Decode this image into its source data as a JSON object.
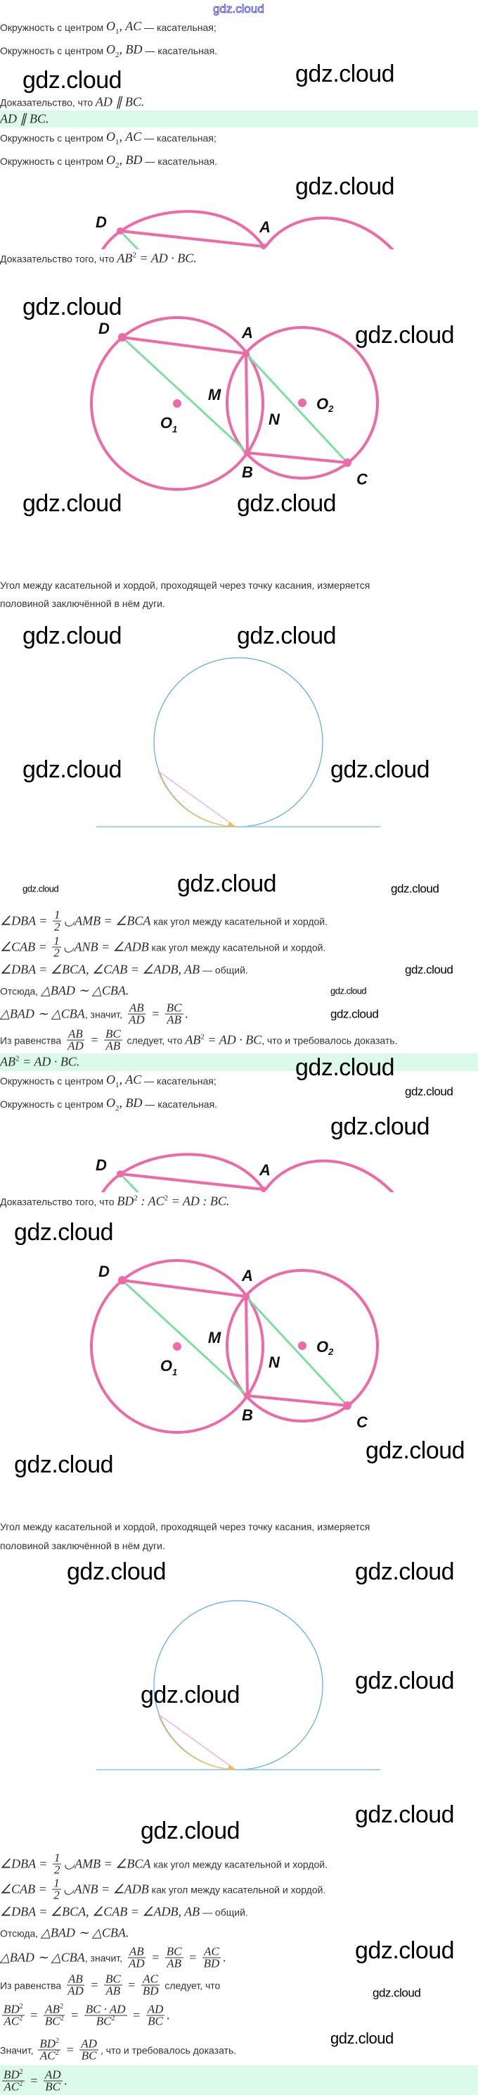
{
  "logo": "gdz.cloud",
  "watermark": "gdz.cloud",
  "colors": {
    "circle": "#ee6aa7",
    "green_line": "#7fdfa0",
    "answer_band": "#dcfaea",
    "tangent_circle": "#5aa9e6",
    "arc": "#f5c96a",
    "chord": "#f4a7c0"
  },
  "given": {
    "prefix": "Окружность с центром ",
    "o": "O",
    "sub1": "1",
    "sub2": "2",
    "ac": ", AC",
    "bd": ", BD",
    "suffix1": " — касательная;",
    "suffix2": " — касательная."
  },
  "task1": {
    "label": "Доказательство, что ",
    "math": "AD ∥ BC."
  },
  "answer1": "AD ∥ BC.",
  "task2": {
    "label": "Доказательство того, что ",
    "ab": "AB",
    "sq": "2",
    "rest": " = AD · BC."
  },
  "task3": {
    "label": "Доказательство того, что ",
    "bd": "BD",
    "sq": "2",
    "mid": " : AC",
    "rest": " = AD : BC."
  },
  "figure_labels": {
    "D": "D",
    "A": "A",
    "M": "M",
    "N": "N",
    "O": "O",
    "one": "1",
    "two": "2",
    "B": "B",
    "C": "C"
  },
  "theorem": {
    "line1": "Угол между касательной и хордой, проходящей через точку касания, измеряется",
    "line2": "половиной заключённой в нём дуги."
  },
  "proof": {
    "half_n": "1",
    "half_d": "2",
    "dba_a": "∠DBA = ",
    "dba_b": "◡AMB = ∠BCA",
    "cab_a": "∠CAB = ",
    "cab_b": "◡ANB = ∠ADB",
    "reason": " как угол между касательной и хордой.",
    "equal": "∠DBA = ∠BCA, ∠CAB = ∠ADB, AB",
    "common": " — общий.",
    "hence": "Отсюда, ",
    "similar": "△BAD ∼ △CBA.",
    "similar2": "△BAD ∼ △CBA",
    "so": ", значит, ",
    "eq": " = ",
    "dot": ".",
    "from": "Из равенства ",
    "follows": " следует, что ",
    "follows2": " следует, что",
    "result1": "AB",
    "result1_sq": "2",
    "result1_rest": " = AD · BC",
    "qed": ", что и требовалось доказать.",
    "therefore": "Значит, ",
    "f_ab_ad": {
      "n": "AB",
      "d": "AD"
    },
    "f_bc_ab": {
      "n": "BC",
      "d": "AB"
    },
    "f_ac_bd": {
      "n": "AC",
      "d": "BD"
    },
    "f_bd2_ac2": {
      "n": "BD",
      "d": "AC"
    },
    "f_ab2_bc2": {
      "n": "AB",
      "d": "BC"
    },
    "f_bcad_bc2": {
      "n": "BC · AD",
      "d": "BC"
    },
    "f_ad_bc": {
      "n": "AD",
      "d": "BC"
    },
    "sq": "2"
  },
  "answer2": {
    "ab": "AB",
    "sq": "2",
    "rest": " = AD · BC."
  }
}
